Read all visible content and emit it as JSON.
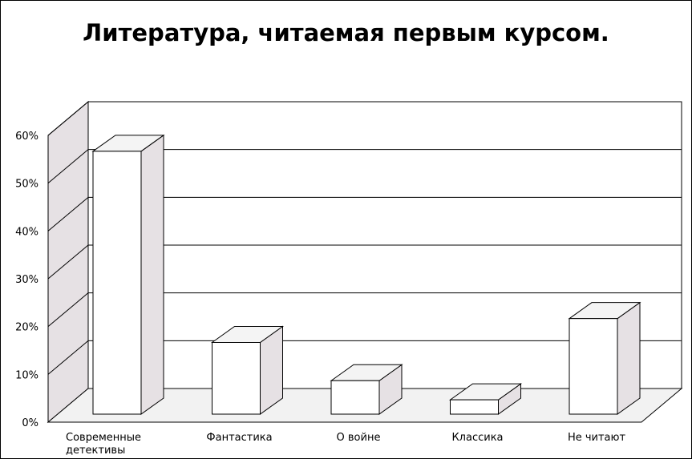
{
  "chart_data": {
    "type": "bar",
    "title": "Литература, читаемая первым курсом.",
    "categories": [
      [
        "Современные",
        "детективы"
      ],
      [
        "Фантастика"
      ],
      [
        "О войне"
      ],
      [
        "Классика"
      ],
      [
        "Не читают"
      ]
    ],
    "values": [
      55,
      15,
      7,
      3,
      20
    ],
    "y_ticks": [
      "0%",
      "10%",
      "20%",
      "30%",
      "40%",
      "50%",
      "60%"
    ],
    "ylim": [
      0,
      60
    ],
    "grid": true,
    "legend": false,
    "style": "3d",
    "colors": {
      "bar_front": "#ffffff",
      "bar_side": "#e6e1e4",
      "bar_top": "#f4f4f4",
      "back_wall": "#ffffff",
      "side_wall": "#e6e1e4",
      "floor": "#f2f2f2",
      "stroke": "#000000"
    }
  }
}
